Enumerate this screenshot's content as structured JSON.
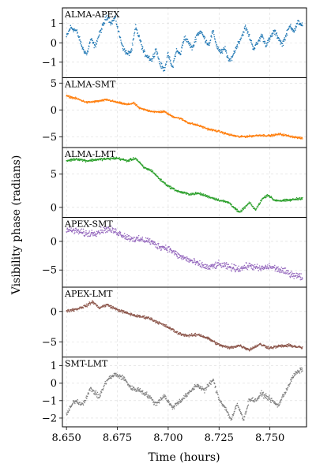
{
  "chart_data": {
    "type": "scatter",
    "xlabel": "Time (hours)",
    "ylabel": "Visibility phase (radians)",
    "xlim": [
      8.648,
      8.768
    ],
    "x_ticks": [
      8.65,
      8.675,
      8.7,
      8.725,
      8.75
    ],
    "x_tick_labels": [
      "8.650",
      "8.675",
      "8.700",
      "8.725",
      "8.750"
    ],
    "grid": true,
    "panels": [
      {
        "title": "ALMA-APEX",
        "color": "#1f77b4",
        "ylim": [
          -1.8,
          1.8
        ],
        "y_ticks": [
          -1,
          0,
          1
        ],
        "y_tick_labels": [
          "−1",
          "0",
          "1"
        ],
        "noise": 0.12,
        "points": [
          [
            8.65,
            0.3
          ],
          [
            8.652,
            0.8
          ],
          [
            8.655,
            0.6
          ],
          [
            8.658,
            -0.3
          ],
          [
            8.66,
            -0.6
          ],
          [
            8.662,
            0.2
          ],
          [
            8.664,
            -0.2
          ],
          [
            8.666,
            0.4
          ],
          [
            8.668,
            0.9
          ],
          [
            8.67,
            1.4
          ],
          [
            8.672,
            1.0
          ],
          [
            8.674,
            1.3
          ],
          [
            8.676,
            0.4
          ],
          [
            8.678,
            -0.3
          ],
          [
            8.68,
            -0.6
          ],
          [
            8.682,
            -0.4
          ],
          [
            8.684,
            0.8
          ],
          [
            8.686,
            0.2
          ],
          [
            8.688,
            -0.5
          ],
          [
            8.69,
            -0.7
          ],
          [
            8.692,
            -0.9
          ],
          [
            8.694,
            -0.3
          ],
          [
            8.696,
            -1.1
          ],
          [
            8.698,
            -1.4
          ],
          [
            8.7,
            -0.6
          ],
          [
            8.702,
            -1.3
          ],
          [
            8.704,
            -0.4
          ],
          [
            8.706,
            -0.6
          ],
          [
            8.708,
            0.3
          ],
          [
            8.71,
            0.0
          ],
          [
            8.712,
            -0.3
          ],
          [
            8.714,
            0.4
          ],
          [
            8.716,
            0.6
          ],
          [
            8.718,
            0.2
          ],
          [
            8.72,
            -0.1
          ],
          [
            8.722,
            0.6
          ],
          [
            8.724,
            -0.2
          ],
          [
            8.726,
            -0.5
          ],
          [
            8.728,
            -0.3
          ],
          [
            8.73,
            -1.0
          ],
          [
            8.732,
            -0.6
          ],
          [
            8.734,
            -0.1
          ],
          [
            8.736,
            0.3
          ],
          [
            8.738,
            0.8
          ],
          [
            8.74,
            0.3
          ],
          [
            8.742,
            -0.3
          ],
          [
            8.744,
            0.0
          ],
          [
            8.746,
            0.4
          ],
          [
            8.748,
            -0.1
          ],
          [
            8.75,
            0.2
          ],
          [
            8.752,
            0.6
          ],
          [
            8.754,
            0.3
          ],
          [
            8.756,
            -0.1
          ],
          [
            8.758,
            0.4
          ],
          [
            8.76,
            0.9
          ],
          [
            8.762,
            0.6
          ],
          [
            8.764,
            1.1
          ],
          [
            8.766,
            0.9
          ]
        ]
      },
      {
        "title": "ALMA-SMT",
        "color": "#ff7f0e",
        "ylim": [
          -7.0,
          6.0
        ],
        "y_ticks": [
          -5,
          0,
          5
        ],
        "y_tick_labels": [
          "−5",
          "0",
          "5"
        ],
        "noise": 0.15,
        "points": [
          [
            8.65,
            2.6
          ],
          [
            8.655,
            2.1
          ],
          [
            8.66,
            1.4
          ],
          [
            8.665,
            1.6
          ],
          [
            8.67,
            1.9
          ],
          [
            8.675,
            1.4
          ],
          [
            8.68,
            1.0
          ],
          [
            8.683,
            1.3
          ],
          [
            8.686,
            0.3
          ],
          [
            8.69,
            -0.1
          ],
          [
            8.694,
            -0.4
          ],
          [
            8.698,
            -0.3
          ],
          [
            8.702,
            -1.2
          ],
          [
            8.706,
            -1.6
          ],
          [
            8.71,
            -2.4
          ],
          [
            8.715,
            -2.9
          ],
          [
            8.72,
            -3.6
          ],
          [
            8.725,
            -4.0
          ],
          [
            8.73,
            -4.6
          ],
          [
            8.735,
            -5.0
          ],
          [
            8.74,
            -4.9
          ],
          [
            8.745,
            -4.7
          ],
          [
            8.75,
            -4.8
          ],
          [
            8.755,
            -4.5
          ],
          [
            8.76,
            -4.9
          ],
          [
            8.766,
            -5.3
          ]
        ]
      },
      {
        "title": "ALMA-LMT",
        "color": "#2ca02c",
        "ylim": [
          -1.5,
          9.0
        ],
        "y_ticks": [
          0,
          5
        ],
        "y_tick_labels": [
          "0",
          "5"
        ],
        "noise": 0.15,
        "points": [
          [
            8.65,
            7.0
          ],
          [
            8.655,
            7.3
          ],
          [
            8.66,
            7.0
          ],
          [
            8.665,
            7.2
          ],
          [
            8.67,
            7.3
          ],
          [
            8.675,
            7.4
          ],
          [
            8.68,
            7.0
          ],
          [
            8.684,
            7.4
          ],
          [
            8.688,
            6.0
          ],
          [
            8.692,
            5.5
          ],
          [
            8.696,
            4.2
          ],
          [
            8.7,
            3.2
          ],
          [
            8.705,
            2.4
          ],
          [
            8.71,
            2.0
          ],
          [
            8.715,
            2.1
          ],
          [
            8.72,
            1.6
          ],
          [
            8.725,
            1.1
          ],
          [
            8.73,
            0.7
          ],
          [
            8.735,
            -0.8
          ],
          [
            8.738,
            0.1
          ],
          [
            8.74,
            0.7
          ],
          [
            8.743,
            -0.4
          ],
          [
            8.746,
            1.2
          ],
          [
            8.749,
            1.9
          ],
          [
            8.752,
            1.1
          ],
          [
            8.756,
            1.0
          ],
          [
            8.76,
            1.1
          ],
          [
            8.766,
            1.4
          ]
        ]
      },
      {
        "title": "APEX-SMT",
        "color": "#9467bd",
        "ylim": [
          -8.0,
          4.2
        ],
        "y_ticks": [
          -5,
          0
        ],
        "y_tick_labels": [
          "−5",
          "0"
        ],
        "noise": 0.5,
        "points": [
          [
            8.65,
            2.0
          ],
          [
            8.655,
            1.8
          ],
          [
            8.66,
            1.3
          ],
          [
            8.665,
            1.6
          ],
          [
            8.67,
            2.2
          ],
          [
            8.675,
            1.6
          ],
          [
            8.68,
            0.7
          ],
          [
            8.685,
            0.3
          ],
          [
            8.69,
            0.2
          ],
          [
            8.695,
            -0.8
          ],
          [
            8.7,
            -1.2
          ],
          [
            8.705,
            -2.5
          ],
          [
            8.71,
            -3.2
          ],
          [
            8.715,
            -4.0
          ],
          [
            8.72,
            -4.6
          ],
          [
            8.725,
            -4.0
          ],
          [
            8.73,
            -4.5
          ],
          [
            8.735,
            -4.8
          ],
          [
            8.74,
            -4.2
          ],
          [
            8.745,
            -4.8
          ],
          [
            8.75,
            -4.4
          ],
          [
            8.755,
            -5.0
          ],
          [
            8.76,
            -5.6
          ],
          [
            8.766,
            -6.3
          ]
        ]
      },
      {
        "title": "APEX-LMT",
        "color": "#8c564b",
        "ylim": [
          -7.5,
          4.0
        ],
        "y_ticks": [
          -5,
          0
        ],
        "y_tick_labels": [
          "−5",
          "0"
        ],
        "noise": 0.2,
        "points": [
          [
            8.65,
            0.1
          ],
          [
            8.655,
            0.4
          ],
          [
            8.66,
            1.0
          ],
          [
            8.663,
            1.6
          ],
          [
            8.666,
            0.6
          ],
          [
            8.67,
            1.1
          ],
          [
            8.675,
            0.3
          ],
          [
            8.68,
            -0.3
          ],
          [
            8.685,
            -0.8
          ],
          [
            8.69,
            -1.0
          ],
          [
            8.695,
            -1.8
          ],
          [
            8.7,
            -2.6
          ],
          [
            8.705,
            -3.6
          ],
          [
            8.71,
            -4.0
          ],
          [
            8.715,
            -3.8
          ],
          [
            8.72,
            -4.5
          ],
          [
            8.725,
            -5.5
          ],
          [
            8.73,
            -6.0
          ],
          [
            8.735,
            -5.6
          ],
          [
            8.74,
            -6.3
          ],
          [
            8.745,
            -5.4
          ],
          [
            8.75,
            -6.0
          ],
          [
            8.755,
            -5.7
          ],
          [
            8.76,
            -5.6
          ],
          [
            8.766,
            -6.0
          ]
        ]
      },
      {
        "title": "SMT-LMT",
        "color": "#7f7f7f",
        "ylim": [
          -2.5,
          1.5
        ],
        "y_ticks": [
          -2,
          -1,
          0,
          1
        ],
        "y_tick_labels": [
          "−2",
          "−1",
          "0",
          "1"
        ],
        "noise": 0.12,
        "points": [
          [
            8.65,
            -1.8
          ],
          [
            8.654,
            -1.0
          ],
          [
            8.658,
            -1.2
          ],
          [
            8.662,
            -0.3
          ],
          [
            8.666,
            -0.8
          ],
          [
            8.67,
            0.2
          ],
          [
            8.674,
            0.5
          ],
          [
            8.678,
            0.3
          ],
          [
            8.682,
            -0.3
          ],
          [
            8.686,
            -0.4
          ],
          [
            8.69,
            -0.7
          ],
          [
            8.694,
            -1.2
          ],
          [
            8.698,
            -0.7
          ],
          [
            8.702,
            -1.4
          ],
          [
            8.706,
            -1.0
          ],
          [
            8.71,
            -0.6
          ],
          [
            8.714,
            -0.1
          ],
          [
            8.718,
            -0.4
          ],
          [
            8.722,
            0.2
          ],
          [
            8.725,
            -0.9
          ],
          [
            8.728,
            -1.4
          ],
          [
            8.731,
            -2.1
          ],
          [
            8.734,
            -1.2
          ],
          [
            8.737,
            -2.1
          ],
          [
            8.74,
            -0.9
          ],
          [
            8.743,
            -1.0
          ],
          [
            8.746,
            -0.6
          ],
          [
            8.75,
            -0.9
          ],
          [
            8.754,
            -1.3
          ],
          [
            8.758,
            -0.4
          ],
          [
            8.762,
            0.5
          ],
          [
            8.766,
            0.8
          ]
        ]
      }
    ]
  }
}
